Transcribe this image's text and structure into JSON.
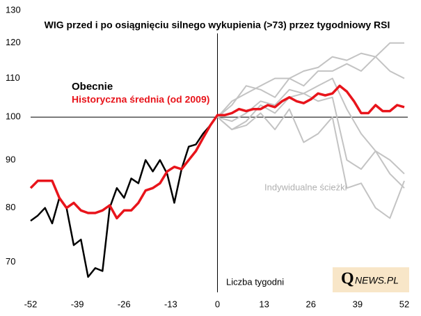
{
  "chart_data": {
    "type": "line",
    "title": "WIG przed i po osiągnięciu  silnego wykupienia (>73) przez tygodniowy RSI",
    "x_label": "Liczba tygodni",
    "annotations": {
      "logo_q": "Q",
      "logo_rest": "NEWS.PL"
    },
    "log_scale": true,
    "xlim": [
      -52,
      52
    ],
    "xticks": [
      -52,
      -39,
      -26,
      -13,
      0,
      13,
      26,
      39,
      52
    ],
    "ylim": [
      65,
      130
    ],
    "yticks": [
      70,
      80,
      90,
      100,
      110,
      120,
      130
    ],
    "series": [
      {
        "name": "Indywidualne ścieżki",
        "color": "#c3c3c3",
        "x": [
          0,
          4,
          8,
          12,
          16,
          20,
          24,
          28,
          32,
          36,
          40,
          44,
          48,
          52
        ],
        "values": [
          100,
          104,
          106,
          108,
          110,
          110,
          112,
          113,
          116,
          115,
          117,
          116,
          120,
          120
        ]
      },
      {
        "color": "#c3c3c3",
        "x": [
          0,
          4,
          8,
          12,
          16,
          20,
          24,
          28,
          32,
          36,
          40,
          44,
          48,
          52
        ],
        "values": [
          100,
          103,
          108,
          107,
          105,
          110,
          108,
          112,
          112,
          114,
          112,
          116,
          112,
          110
        ]
      },
      {
        "color": "#c3c3c3",
        "x": [
          0,
          4,
          8,
          12,
          16,
          20,
          24,
          28,
          32,
          36,
          40,
          44,
          48,
          52
        ],
        "values": [
          100,
          97,
          99,
          103,
          101,
          105,
          106,
          104,
          105,
          90,
          88,
          92,
          90,
          87
        ]
      },
      {
        "color": "#c3c3c3",
        "x": [
          0,
          4,
          8,
          12,
          16,
          20,
          24,
          28,
          32,
          36,
          40,
          44,
          48,
          52
        ],
        "values": [
          100,
          97,
          98,
          101,
          97,
          102,
          94,
          96,
          100,
          84,
          85,
          80,
          78,
          85.5
        ]
      },
      {
        "color": "#c3c3c3",
        "x": [
          0,
          4,
          8,
          12,
          16,
          20,
          24,
          28,
          32,
          36,
          40,
          44,
          48,
          52
        ],
        "values": [
          100,
          99,
          101,
          104,
          103,
          107,
          106,
          108,
          110,
          102,
          96,
          92,
          87,
          84
        ]
      },
      {
        "name": "Obecnie",
        "color": "#000000",
        "x": [
          -52,
          -50,
          -48,
          -46,
          -44,
          -42,
          -40,
          -38,
          -36,
          -34,
          -32,
          -30,
          -28,
          -26,
          -24,
          -22,
          -20,
          -18,
          -16,
          -14,
          -12,
          -10,
          -8,
          -6,
          -4,
          -2,
          0
        ],
        "values": [
          77.5,
          78.5,
          80,
          77,
          82,
          80,
          73,
          74,
          67.5,
          69,
          68.5,
          80,
          84,
          82,
          86,
          85,
          90,
          87.5,
          90,
          87,
          81,
          88,
          93,
          93.5,
          96,
          98,
          100.5
        ]
      },
      {
        "name": "Historyczna średnia (od 2009)",
        "color": "#e8141b",
        "x": [
          -52,
          -50,
          -48,
          -46,
          -44,
          -42,
          -40,
          -38,
          -36,
          -34,
          -32,
          -30,
          -28,
          -26,
          -24,
          -22,
          -20,
          -18,
          -16,
          -14,
          -12,
          -10,
          -8,
          -6,
          -4,
          -2,
          0,
          2,
          4,
          6,
          8,
          10,
          12,
          14,
          16,
          18,
          20,
          22,
          24,
          26,
          28,
          30,
          32,
          34,
          36,
          38,
          40,
          42,
          44,
          46,
          48,
          50,
          52
        ],
        "values": [
          84,
          85.5,
          85.5,
          85.5,
          82,
          80,
          81,
          79.5,
          79,
          79,
          79.5,
          80.5,
          78,
          79.5,
          79.5,
          81,
          83.5,
          84,
          85,
          87.5,
          88.5,
          88,
          90,
          92,
          95,
          98,
          100.5,
          100.5,
          101,
          102,
          101.5,
          102,
          102,
          103,
          102.5,
          104,
          105,
          104,
          103.5,
          104.5,
          106,
          105.5,
          106,
          108,
          106.5,
          104,
          101,
          101,
          103,
          101.5,
          101.5,
          103,
          102.5
        ]
      }
    ]
  }
}
